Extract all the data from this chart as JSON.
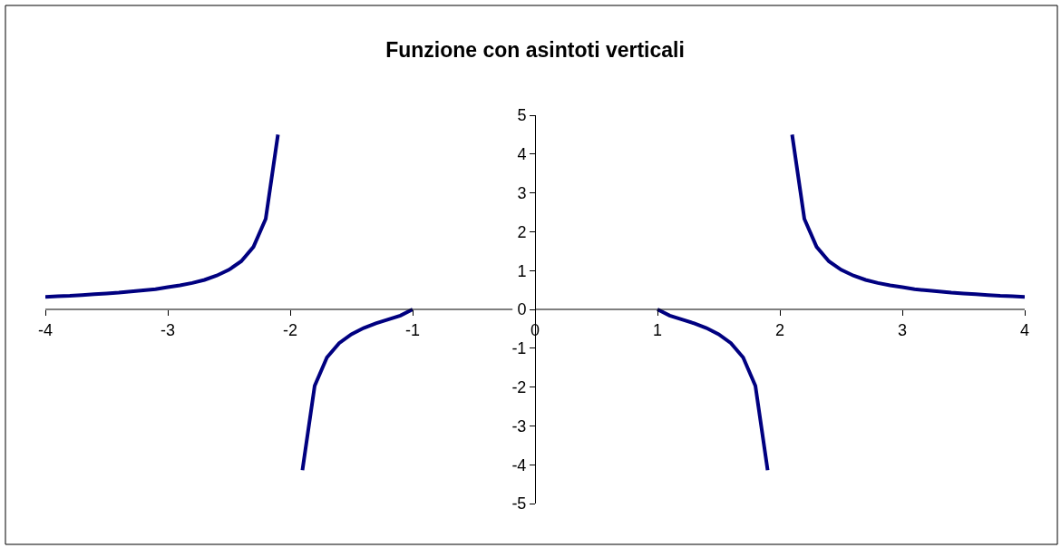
{
  "chart_data": {
    "type": "line",
    "title": "Funzione con asintoti verticali",
    "x": [
      -4.0,
      -3.9,
      -3.8,
      -3.7,
      -3.6,
      -3.5,
      -3.4,
      -3.3,
      -3.2,
      -3.1,
      -3.0,
      -2.9,
      -2.8,
      -2.7,
      -2.6,
      -2.5,
      -2.4,
      -2.3,
      -2.2,
      -2.1,
      -2.0,
      -1.9,
      -1.8,
      -1.7,
      -1.6,
      -1.5,
      -1.4,
      -1.3,
      -1.2,
      -1.1,
      -1.0,
      0.0,
      1.0,
      1.1,
      1.2,
      1.3,
      1.4,
      1.5,
      1.6,
      1.7,
      1.8,
      1.9,
      2.0,
      2.1,
      2.2,
      2.3,
      2.4,
      2.5,
      2.6,
      2.7,
      2.8,
      2.9,
      3.0,
      3.1,
      3.2,
      3.3,
      3.4,
      3.5,
      3.6,
      3.7,
      3.8,
      3.9,
      4.0
    ],
    "values": [
      0.32,
      0.34,
      0.35,
      0.37,
      0.39,
      0.41,
      0.43,
      0.46,
      0.49,
      0.52,
      0.57,
      0.62,
      0.68,
      0.76,
      0.87,
      1.02,
      1.24,
      1.61,
      2.33,
      4.5,
      null,
      -4.14,
      -1.97,
      -1.24,
      -0.87,
      -0.64,
      -0.48,
      -0.36,
      -0.26,
      -0.16,
      0,
      null,
      0,
      -0.16,
      -0.26,
      -0.36,
      -0.48,
      -0.64,
      -0.87,
      -1.24,
      -1.97,
      -4.14,
      null,
      4.5,
      2.33,
      1.61,
      1.24,
      1.02,
      0.87,
      0.76,
      0.68,
      0.62,
      0.57,
      0.52,
      0.49,
      0.46,
      0.43,
      0.41,
      0.39,
      0.37,
      0.35,
      0.34,
      0.32
    ],
    "color": "#000080",
    "xlim": [
      -4,
      4
    ],
    "ylim": [
      -5,
      5
    ],
    "xticks": [
      -4,
      -3,
      -2,
      -1,
      0,
      1,
      2,
      3,
      4
    ],
    "yticks": [
      -5,
      -4,
      -3,
      -2,
      -1,
      0,
      1,
      2,
      3,
      4,
      5
    ],
    "grid": false,
    "marker": "none",
    "line_style": "solid"
  }
}
